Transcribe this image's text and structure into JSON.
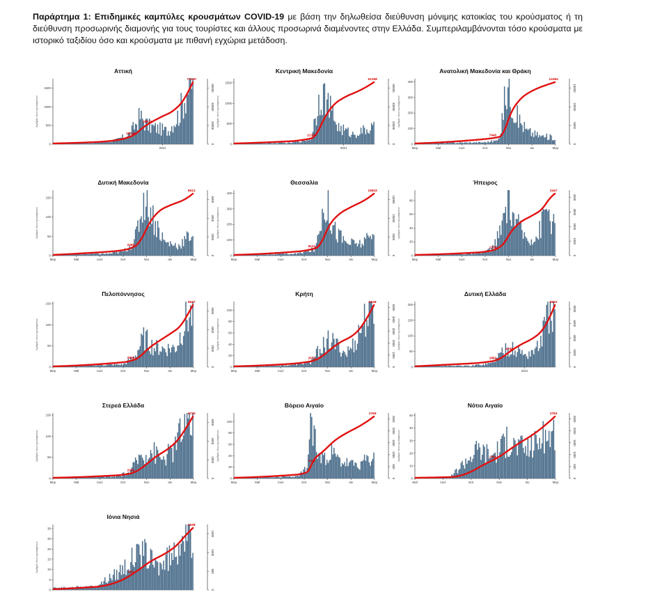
{
  "caption": {
    "label": "Παράρτημα 1:",
    "title": "Επιδημικές καμπύλες κρουσμάτων COVID-19",
    "text": "με βάση την δηλωθείσα διεύθυνση μόνιμης κατοικίας του κρούσματος ή τη διεύθυνση προσωρινής διαμονής για τους τουρίστες και άλλους προσωρινά διαμένοντες στην Ελλάδα. Συμπεριλαμβάνονται τόσο κρούσματα με ιστορικό ταξιδίου όσο και κρούσματα με πιθανή εγχώρια μετάδοση."
  },
  "colors": {
    "bars": "#4d6f8c",
    "curve": "#e01010",
    "axis": "#222222"
  },
  "y_axis_label": "Αριθμός νέων κρουσμάτων",
  "chart_data": [
    {
      "type": "bar+line",
      "title": "Αττική",
      "left_ylim": [
        0,
        1750
      ],
      "left_ticks": [
        "0",
        "500",
        "1000",
        "1500"
      ],
      "right_ticks": [
        "0",
        "20000",
        "40000",
        "60000"
      ],
      "x_ticks": [
        "2021"
      ],
      "curve_labels": [
        "18140",
        "28822",
        "77220"
      ],
      "shape": [
        [
          0,
          0.01
        ],
        [
          0.3,
          0.02
        ],
        [
          0.45,
          0.06
        ],
        [
          0.55,
          0.16
        ],
        [
          0.62,
          0.42
        ],
        [
          0.68,
          0.28
        ],
        [
          0.75,
          0.24
        ],
        [
          0.82,
          0.2
        ],
        [
          0.9,
          0.45
        ],
        [
          0.96,
          0.85
        ],
        [
          1,
          0.95
        ]
      ],
      "cumulative_end": 77220
    },
    {
      "type": "bar+line",
      "title": "Κεντρική Μακεδονία",
      "left_ylim": [
        0,
        1600
      ],
      "left_ticks": [
        "0",
        "500",
        "1000",
        "1500"
      ],
      "right_ticks": [
        "0",
        "20000",
        "40000",
        "60000"
      ],
      "x_ticks": [
        "2021"
      ],
      "curve_labels": [
        "21340",
        "51258"
      ],
      "shape": [
        [
          0,
          0.01
        ],
        [
          0.4,
          0.02
        ],
        [
          0.55,
          0.08
        ],
        [
          0.62,
          0.85
        ],
        [
          0.68,
          0.55
        ],
        [
          0.75,
          0.25
        ],
        [
          0.85,
          0.15
        ],
        [
          0.95,
          0.22
        ],
        [
          1,
          0.25
        ]
      ],
      "cumulative_end": 51258
    },
    {
      "type": "bar+line",
      "title": "Ανατολική Μακεδονία και Θράκη",
      "left_ylim": [
        0,
        420
      ],
      "left_ticks": [
        "0",
        "100",
        "200",
        "300",
        "400"
      ],
      "right_ticks": [
        "0",
        "5000",
        "10000",
        "15000"
      ],
      "x_ticks": [
        "Μαρ",
        "Μαΐ",
        "Ιουλ",
        "Σεπ",
        "Νοε",
        "Ιαν",
        "Μαρ"
      ],
      "curve_labels": [
        "7440",
        "14364"
      ],
      "shape": [
        [
          0,
          0.01
        ],
        [
          0.5,
          0.03
        ],
        [
          0.6,
          0.06
        ],
        [
          0.66,
          0.95
        ],
        [
          0.72,
          0.45
        ],
        [
          0.8,
          0.2
        ],
        [
          0.9,
          0.12
        ],
        [
          1,
          0.1
        ]
      ],
      "cumulative_end": 14364
    },
    {
      "type": "bar+line",
      "title": "Δυτική Μακεδονία",
      "left_ylim": [
        0,
        170
      ],
      "left_ticks": [
        "0",
        "50",
        "100",
        "150"
      ],
      "right_ticks": [
        "0",
        "2000",
        "4000",
        "6000"
      ],
      "x_ticks": [
        "Μαρ",
        "Μαΐ",
        "Ιουλ",
        "Σεπ",
        "Νοε",
        "Ιαν",
        "Μαρ"
      ],
      "curve_labels": [
        "2280",
        "6613"
      ],
      "shape": [
        [
          0,
          0.02
        ],
        [
          0.4,
          0.03
        ],
        [
          0.5,
          0.06
        ],
        [
          0.58,
          0.2
        ],
        [
          0.66,
          0.95
        ],
        [
          0.72,
          0.55
        ],
        [
          0.8,
          0.2
        ],
        [
          0.9,
          0.15
        ],
        [
          1,
          0.35
        ]
      ],
      "cumulative_end": 6613
    },
    {
      "type": "bar+line",
      "title": "Θεσσαλία",
      "left_ylim": [
        0,
        420
      ],
      "left_ticks": [
        "0",
        "100",
        "200",
        "300",
        "400"
      ],
      "right_ticks": [
        "0",
        "5000",
        "10000",
        "15000"
      ],
      "x_ticks": [
        "Μαρ",
        "Μαΐ",
        "Ιουλ",
        "Σεπ",
        "Νοε",
        "Ιαν",
        "Μαρ"
      ],
      "curve_labels": [
        "8124",
        "15819"
      ],
      "shape": [
        [
          0,
          0.01
        ],
        [
          0.45,
          0.03
        ],
        [
          0.58,
          0.1
        ],
        [
          0.65,
          0.9
        ],
        [
          0.72,
          0.4
        ],
        [
          0.8,
          0.2
        ],
        [
          0.9,
          0.18
        ],
        [
          1,
          0.3
        ]
      ],
      "cumulative_end": 15819
    },
    {
      "type": "bar+line",
      "title": "Ήπειρος",
      "left_ylim": [
        0,
        95
      ],
      "left_ticks": [
        "0",
        "20",
        "40",
        "60",
        "80"
      ],
      "right_ticks": [
        "0",
        "1000",
        "2000",
        "3000",
        "4000"
      ],
      "x_ticks": [
        "Μαρ",
        "Μαΐ",
        "Ιουλ",
        "Σεπ",
        "Νοε",
        "Ιαν",
        "Μαρ"
      ],
      "curve_labels": [
        "1730",
        "2447"
      ],
      "shape": [
        [
          0,
          0.01
        ],
        [
          0.45,
          0.03
        ],
        [
          0.55,
          0.1
        ],
        [
          0.62,
          0.4
        ],
        [
          0.66,
          0.9
        ],
        [
          0.72,
          0.5
        ],
        [
          0.8,
          0.25
        ],
        [
          0.88,
          0.3
        ],
        [
          0.94,
          0.75
        ],
        [
          1,
          0.4
        ]
      ],
      "cumulative_end": 2447
    },
    {
      "type": "bar+line",
      "title": "Πελοπόννησος",
      "left_ylim": [
        0,
        155
      ],
      "left_ticks": [
        "0",
        "50",
        "100",
        "150"
      ],
      "right_ticks": [
        "0",
        "2000",
        "4000",
        "6000"
      ],
      "x_ticks": [
        "Μαρ",
        "Μαΐ",
        "Ιουλ",
        "Σεπ",
        "Νοε",
        "Ιαν",
        "Μαρ"
      ],
      "curve_labels": [
        "2828",
        "5547"
      ],
      "shape": [
        [
          0,
          0.01
        ],
        [
          0.15,
          0.02
        ],
        [
          0.5,
          0.04
        ],
        [
          0.58,
          0.15
        ],
        [
          0.65,
          0.45
        ],
        [
          0.72,
          0.3
        ],
        [
          0.8,
          0.28
        ],
        [
          0.88,
          0.3
        ],
        [
          0.95,
          0.75
        ],
        [
          1,
          0.8
        ]
      ],
      "cumulative_end": 5547
    },
    {
      "type": "bar+line",
      "title": "Κρήτη",
      "left_ylim": [
        0,
        115
      ],
      "left_ticks": [
        "0",
        "20",
        "40",
        "60",
        "80",
        "100"
      ],
      "right_ticks": [
        "0",
        "1000",
        "2000",
        "3000",
        "4000",
        "5000"
      ],
      "x_ticks": [
        "Μαρ",
        "Μαΐ",
        "Ιουλ",
        "Σεπ",
        "Νοε",
        "Ιαν",
        "Μαρ"
      ],
      "curve_labels": [
        "2612",
        "5248"
      ],
      "shape": [
        [
          0,
          0.01
        ],
        [
          0.4,
          0.03
        ],
        [
          0.55,
          0.08
        ],
        [
          0.62,
          0.3
        ],
        [
          0.68,
          0.4
        ],
        [
          0.75,
          0.3
        ],
        [
          0.8,
          0.2
        ],
        [
          0.86,
          0.35
        ],
        [
          0.93,
          0.7
        ],
        [
          1,
          0.9
        ]
      ],
      "cumulative_end": 5248
    },
    {
      "type": "bar+line",
      "title": "Δυτική Ελλάδα",
      "left_ylim": [
        0,
        210
      ],
      "left_ticks": [
        "0",
        "50",
        "100",
        "150",
        "200"
      ],
      "right_ticks": [
        "0",
        "2000",
        "4000",
        "6000",
        "8000"
      ],
      "x_ticks": [
        "2021"
      ],
      "curve_labels": [
        "1882",
        "4788",
        "8622"
      ],
      "shape": [
        [
          0,
          0.02
        ],
        [
          0.4,
          0.02
        ],
        [
          0.55,
          0.06
        ],
        [
          0.65,
          0.3
        ],
        [
          0.72,
          0.25
        ],
        [
          0.8,
          0.18
        ],
        [
          0.88,
          0.3
        ],
        [
          0.95,
          0.75
        ],
        [
          1,
          0.95
        ]
      ],
      "cumulative_end": 8622
    },
    {
      "type": "bar+line",
      "title": "Στερεά Ελλάδα",
      "left_ylim": [
        0,
        155
      ],
      "left_ticks": [
        "0",
        "50",
        "100",
        "150"
      ],
      "right_ticks": [
        "0",
        "2000",
        "4000",
        "6000"
      ],
      "x_ticks": [
        "Μαρ",
        "Μαΐ",
        "Ιουλ",
        "Σεπ",
        "Νοε",
        "Ιαν",
        "Μαρ"
      ],
      "curve_labels": [
        "2268",
        "6725"
      ],
      "shape": [
        [
          0,
          0.01
        ],
        [
          0.45,
          0.03
        ],
        [
          0.55,
          0.1
        ],
        [
          0.62,
          0.35
        ],
        [
          0.7,
          0.45
        ],
        [
          0.78,
          0.3
        ],
        [
          0.86,
          0.45
        ],
        [
          0.93,
          0.8
        ],
        [
          1,
          0.9
        ]
      ],
      "cumulative_end": 6725
    },
    {
      "type": "bar+line",
      "title": "Βόρειο Αιγαίο",
      "left_ylim": [
        0,
        115
      ],
      "left_ticks": [
        "0",
        "20",
        "40",
        "60",
        "80",
        "100"
      ],
      "right_ticks": [
        "0",
        "500",
        "1000",
        "1500",
        "2000",
        "2500"
      ],
      "x_ticks": [
        "Μαρ",
        "Μαΐ",
        "Ιουλ",
        "Σεπ",
        "Νοε",
        "Ιαν",
        "Μαρ"
      ],
      "curve_labels": [
        "1578",
        "2769"
      ],
      "shape": [
        [
          0,
          0.01
        ],
        [
          0.45,
          0.03
        ],
        [
          0.52,
          0.15
        ],
        [
          0.55,
          0.95
        ],
        [
          0.6,
          0.3
        ],
        [
          0.68,
          0.4
        ],
        [
          0.76,
          0.25
        ],
        [
          0.85,
          0.2
        ],
        [
          0.93,
          0.25
        ],
        [
          1,
          0.3
        ]
      ],
      "cumulative_end": 2769
    },
    {
      "type": "bar+line",
      "title": "Νότιο Αιγαίο",
      "left_ylim": [
        0,
        52
      ],
      "left_ticks": [
        "0",
        "10",
        "20",
        "30",
        "40",
        "50"
      ],
      "right_ticks": [
        "0",
        "500",
        "1000",
        "1500",
        "2000",
        "2500"
      ],
      "x_ticks": [
        "Μαΐ",
        "Ιουλ",
        "Σεπ",
        "Νοε",
        "Ιαν",
        "Μαρ"
      ],
      "curve_labels": [
        "1282",
        "2784"
      ],
      "shape": [
        [
          0,
          0.01
        ],
        [
          0.25,
          0.02
        ],
        [
          0.35,
          0.25
        ],
        [
          0.45,
          0.45
        ],
        [
          0.55,
          0.35
        ],
        [
          0.65,
          0.55
        ],
        [
          0.72,
          0.5
        ],
        [
          0.8,
          0.45
        ],
        [
          0.9,
          0.6
        ],
        [
          1,
          0.7
        ]
      ],
      "cumulative_end": 2784
    },
    {
      "type": "bar+line",
      "title": "Ιόνια Νησιά",
      "left_ylim": [
        0,
        32
      ],
      "left_ticks": [
        "0",
        "5",
        "10",
        "15",
        "20",
        "25",
        "30"
      ],
      "right_ticks": [
        "0",
        "500",
        "1000",
        "1500"
      ],
      "x_ticks": [],
      "curve_labels": [
        "595",
        "1538"
      ],
      "shape": [
        [
          0,
          0.03
        ],
        [
          0.3,
          0.05
        ],
        [
          0.45,
          0.25
        ],
        [
          0.55,
          0.45
        ],
        [
          0.65,
          0.55
        ],
        [
          0.75,
          0.35
        ],
        [
          0.85,
          0.5
        ],
        [
          0.92,
          0.85
        ],
        [
          1,
          0.7
        ]
      ],
      "cumulative_end": 1538
    }
  ]
}
